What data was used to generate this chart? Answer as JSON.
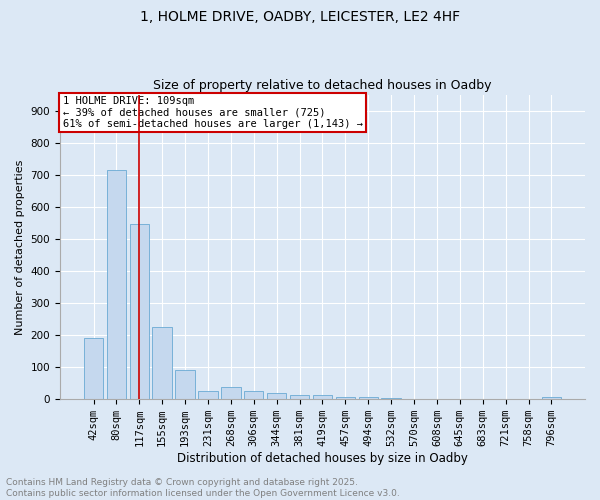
{
  "title1": "1, HOLME DRIVE, OADBY, LEICESTER, LE2 4HF",
  "title2": "Size of property relative to detached houses in Oadby",
  "xlabel": "Distribution of detached houses by size in Oadby",
  "ylabel": "Number of detached properties",
  "categories": [
    "42sqm",
    "80sqm",
    "117sqm",
    "155sqm",
    "193sqm",
    "231sqm",
    "268sqm",
    "306sqm",
    "344sqm",
    "381sqm",
    "419sqm",
    "457sqm",
    "494sqm",
    "532sqm",
    "570sqm",
    "608sqm",
    "645sqm",
    "683sqm",
    "721sqm",
    "758sqm",
    "796sqm"
  ],
  "values": [
    190,
    715,
    545,
    225,
    90,
    27,
    38,
    25,
    18,
    12,
    12,
    8,
    6,
    3,
    2,
    2,
    2,
    1,
    1,
    1,
    7
  ],
  "bar_color": "#c5d8ee",
  "bar_edge_color": "#6aaad4",
  "ylim": [
    0,
    950
  ],
  "yticks": [
    0,
    100,
    200,
    300,
    400,
    500,
    600,
    700,
    800,
    900
  ],
  "red_line_index": 2,
  "annotation_line1": "1 HOLME DRIVE: 109sqm",
  "annotation_line2": "← 39% of detached houses are smaller (725)",
  "annotation_line3": "61% of semi-detached houses are larger (1,143) →",
  "annotation_box_color": "#ffffff",
  "annotation_border_color": "#cc0000",
  "red_line_color": "#cc0000",
  "background_color": "#dce8f5",
  "plot_bg_color": "#dce8f5",
  "grid_color": "#ffffff",
  "footer1": "Contains HM Land Registry data © Crown copyright and database right 2025.",
  "footer2": "Contains public sector information licensed under the Open Government Licence v3.0.",
  "title1_fontsize": 10,
  "title2_fontsize": 9,
  "xlabel_fontsize": 8.5,
  "ylabel_fontsize": 8,
  "tick_fontsize": 7.5,
  "footer_fontsize": 6.5
}
